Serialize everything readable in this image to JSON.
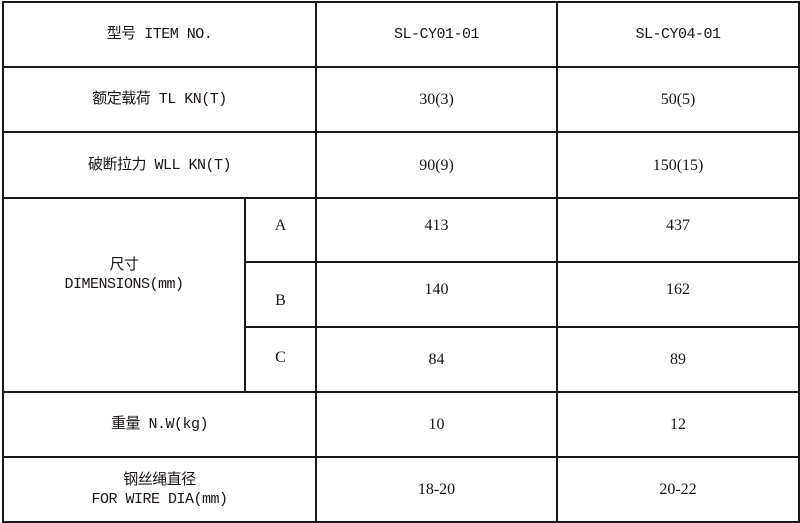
{
  "table": {
    "header": {
      "label": "型号 ITEM NO.",
      "models": [
        "SL-CY01-01",
        "SL-CY04-01"
      ]
    },
    "rated_load": {
      "label": "额定载荷 TL KN(T)",
      "values": [
        "30(3)",
        "50(5)"
      ]
    },
    "breaking_load": {
      "label": "破断拉力 WLL KN(T)",
      "values": [
        "90(9)",
        "150(15)"
      ]
    },
    "dimensions": {
      "label_cn": "尺寸",
      "label_en": "DIMENSIONS(mm)",
      "rows": [
        {
          "key": "A",
          "values": [
            "413",
            "437"
          ]
        },
        {
          "key": "B",
          "values": [
            "140",
            "162"
          ]
        },
        {
          "key": "C",
          "values": [
            "84",
            "89"
          ]
        }
      ]
    },
    "weight": {
      "label": "重量 N.W(kg)",
      "values": [
        "10",
        "12"
      ]
    },
    "wire_dia": {
      "label_cn": "钢丝绳直径",
      "label_en": "FOR WIRE DIA(mm)",
      "values": [
        "18-20",
        "20-22"
      ]
    }
  }
}
